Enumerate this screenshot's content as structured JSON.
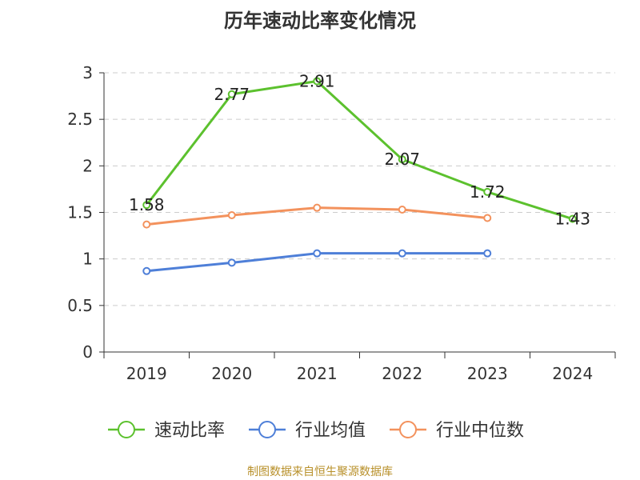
{
  "chart_data": {
    "type": "line",
    "title": "历年速动比率变化情况",
    "categories": [
      "2019",
      "2020",
      "2021",
      "2022",
      "2023",
      "2024"
    ],
    "ylim": [
      0,
      3
    ],
    "yticks": [
      "0",
      "0.5",
      "1",
      "1.5",
      "2",
      "2.5",
      "3"
    ],
    "grid": true,
    "legend_position": "bottom",
    "series": [
      {
        "name": "速动比率",
        "color": "#5cc12e",
        "values": [
          1.58,
          2.77,
          2.91,
          2.07,
          1.72,
          1.43
        ],
        "labels": [
          "1.58",
          "2.77",
          "2.91",
          "2.07",
          "1.72",
          "1.43"
        ]
      },
      {
        "name": "行业均值",
        "color": "#4e7fd8",
        "values": [
          0.87,
          0.96,
          1.06,
          1.06,
          1.06,
          null
        ]
      },
      {
        "name": "行业中位数",
        "color": "#f3925d",
        "values": [
          1.37,
          1.47,
          1.55,
          1.53,
          1.44,
          null
        ]
      }
    ]
  },
  "source": "制图数据来自恒生聚源数据库"
}
